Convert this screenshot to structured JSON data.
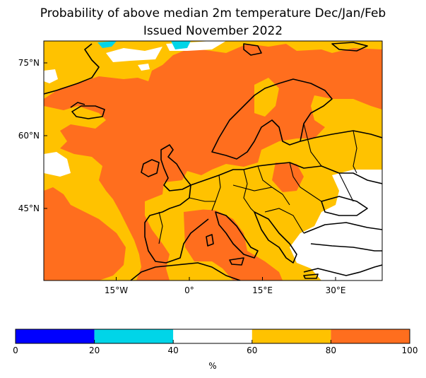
{
  "title_line1": "Probability of above median 2m temperature Dec/Jan/Feb",
  "title_line2": "Issued November 2022",
  "lat_ticks": [
    {
      "value": 75,
      "label": "75°N"
    },
    {
      "value": 60,
      "label": "60°N"
    },
    {
      "value": 45,
      "label": "45°N"
    }
  ],
  "lon_ticks": [
    {
      "value": -15,
      "label": "15°W"
    },
    {
      "value": 0,
      "label": "0°"
    },
    {
      "value": 15,
      "label": "15°E"
    },
    {
      "value": 30,
      "label": "30°E"
    }
  ],
  "colorbar": {
    "unit": "%",
    "bins": [
      {
        "from": 0,
        "to": 20,
        "color": "#0000ff"
      },
      {
        "from": 20,
        "to": 40,
        "color": "#00d5e8"
      },
      {
        "from": 40,
        "to": 60,
        "color": "#ffffff"
      },
      {
        "from": 60,
        "to": 80,
        "color": "#ffc200"
      },
      {
        "from": 80,
        "to": 100,
        "color": "#ff6e1e"
      }
    ],
    "tick_labels": [
      "0",
      "20",
      "40",
      "60",
      "80",
      "100"
    ]
  }
}
